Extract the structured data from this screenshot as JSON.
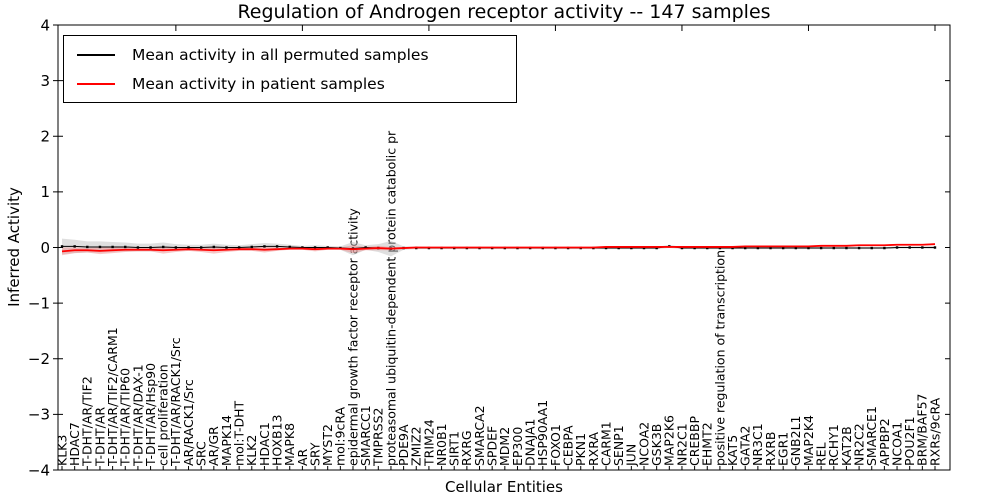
{
  "figure": {
    "title": "Regulation of Androgen receptor activity -- 147 samples",
    "xlabel": "Cellular Entities",
    "ylabel": "Inferred Activity"
  },
  "legend": {
    "entries": [
      {
        "label": "Mean activity in all permuted samples",
        "color": "#000000"
      },
      {
        "label": "Mean activity in patient samples",
        "color": "#ff0000"
      }
    ]
  },
  "chart_data": {
    "type": "line",
    "title": "Regulation of Androgen receptor activity -- 147 samples",
    "xlabel": "Cellular Entities",
    "ylabel": "Inferred Activity",
    "ylim": [
      -4,
      4
    ],
    "yticks": [
      4,
      3,
      2,
      1,
      0,
      -1,
      -2,
      -3,
      -4
    ],
    "grid": false,
    "legend_position": "upper left",
    "categories": [
      "KLK3",
      "HDAC7",
      "T-DHT/AR/TIF2",
      "T-DHT/AR",
      "T-DHT/AR/TIF2/CARM1",
      "T-DHT/AR/TIP60",
      "T-DHT/AR/DAX-1",
      "T-DHT/AR/Hsp90",
      "cell proliferation",
      "T-DHT/AR/RACK1/Src",
      "AR/RACK1/Src",
      "SRC",
      "AR/GR",
      "MAPK14",
      "mol:T-DHT",
      "KLK2",
      "HDAC1",
      "HOXB13",
      "MAPK8",
      "AR",
      "SRY",
      "MYST2",
      "mol:9cRA",
      "epidermal growth factor receptor activity",
      "SMARCC1",
      "TMPRSS2",
      "proteasomal ubiquitin-dependent protein catabolic pr",
      "PDE9A",
      "ZMIZ2",
      "TRIM24",
      "NR0B1",
      "SIRT1",
      "RXRG",
      "SMARCA2",
      "SPDEF",
      "MDM2",
      "EP300",
      "DNAJA1",
      "HSP90AA1",
      "FOXO1",
      "CEBPA",
      "PKN1",
      "RXRA",
      "CARM1",
      "SENP1",
      "JUN",
      "NCOA2",
      "GSK3B",
      "MAP2K6",
      "NR2C1",
      "CREBBP",
      "EHMT2",
      "positive regulation of transcription",
      "KAT5",
      "GATA2",
      "NR3C1",
      "RXRB",
      "EGR1",
      "GNB2L1",
      "MAP2K4",
      "REL",
      "RCHY1",
      "KAT2B",
      "NR2C2",
      "SMARCE1",
      "APPBP2",
      "NCOA1",
      "POU2F1",
      "BRM/BAF57",
      "RXRs/9cRA"
    ],
    "series": [
      {
        "name": "Mean activity in all permuted samples",
        "color": "#000000",
        "marker": "square",
        "band_color": "#c0c0c0",
        "values": [
          0.02,
          0.02,
          0.01,
          0.01,
          0.01,
          0.01,
          0.0,
          0.0,
          0.01,
          0.0,
          0.0,
          0.0,
          0.01,
          0.0,
          0.0,
          0.01,
          0.02,
          0.02,
          0.01,
          0.0,
          0.0,
          0.0,
          -0.01,
          -0.02,
          0.0,
          -0.01,
          -0.02,
          -0.01,
          -0.01,
          -0.01,
          -0.01,
          -0.01,
          -0.01,
          -0.01,
          -0.01,
          -0.01,
          -0.01,
          -0.01,
          -0.01,
          -0.01,
          -0.01,
          -0.01,
          -0.01,
          -0.01,
          -0.01,
          -0.01,
          -0.01,
          -0.01,
          0.02,
          -0.01,
          -0.01,
          -0.01,
          -0.01,
          -0.01,
          -0.01,
          -0.01,
          -0.01,
          -0.01,
          -0.01,
          -0.01,
          -0.01,
          -0.01,
          -0.01,
          -0.01,
          -0.01,
          -0.01,
          0.0,
          0.0,
          0.0,
          0.0
        ],
        "band_halfwidth": [
          0.14,
          0.12,
          0.1,
          0.1,
          0.09,
          0.08,
          0.07,
          0.07,
          0.08,
          0.06,
          0.05,
          0.05,
          0.06,
          0.05,
          0.04,
          0.05,
          0.06,
          0.05,
          0.04,
          0.03,
          0.04,
          0.03,
          0.03,
          0.12,
          0.04,
          0.07,
          0.14,
          0.03,
          0.02,
          0.02,
          0.02,
          0.02,
          0.02,
          0.02,
          0.02,
          0.02,
          0.02,
          0.02,
          0.02,
          0.02,
          0.02,
          0.02,
          0.02,
          0.02,
          0.02,
          0.02,
          0.02,
          0.02,
          0.03,
          0.02,
          0.02,
          0.02,
          0.02,
          0.02,
          0.02,
          0.02,
          0.02,
          0.02,
          0.02,
          0.02,
          0.02,
          0.02,
          0.02,
          0.02,
          0.02,
          0.02,
          0.02,
          0.02,
          0.02,
          0.03
        ]
      },
      {
        "name": "Mean activity in patient samples",
        "color": "#ff0000",
        "marker": "none",
        "band_color": "#f09090",
        "values": [
          -0.07,
          -0.05,
          -0.05,
          -0.06,
          -0.05,
          -0.04,
          -0.04,
          -0.04,
          -0.05,
          -0.04,
          -0.03,
          -0.04,
          -0.05,
          -0.04,
          -0.03,
          -0.03,
          -0.04,
          -0.03,
          -0.02,
          -0.02,
          -0.03,
          -0.02,
          -0.02,
          -0.03,
          -0.02,
          -0.01,
          -0.02,
          -0.01,
          0.0,
          0.0,
          0.0,
          0.0,
          0.0,
          0.0,
          0.0,
          0.0,
          0.0,
          0.0,
          0.0,
          0.0,
          0.0,
          0.0,
          0.0,
          0.01,
          0.01,
          0.01,
          0.01,
          0.01,
          0.01,
          0.01,
          0.01,
          0.01,
          0.01,
          0.01,
          0.02,
          0.02,
          0.02,
          0.02,
          0.02,
          0.02,
          0.03,
          0.03,
          0.03,
          0.04,
          0.04,
          0.04,
          0.05,
          0.05,
          0.05,
          0.06
        ],
        "band_halfwidth": [
          0.07,
          0.05,
          0.04,
          0.06,
          0.05,
          0.04,
          0.03,
          0.03,
          0.06,
          0.04,
          0.03,
          0.04,
          0.06,
          0.04,
          0.03,
          0.03,
          0.05,
          0.03,
          0.02,
          0.02,
          0.04,
          0.02,
          0.02,
          0.07,
          0.03,
          0.04,
          0.03,
          0.02,
          0.02,
          0.01,
          0.01,
          0.01,
          0.01,
          0.01,
          0.01,
          0.01,
          0.01,
          0.01,
          0.01,
          0.01,
          0.01,
          0.01,
          0.01,
          0.01,
          0.01,
          0.01,
          0.01,
          0.01,
          0.01,
          0.01,
          0.01,
          0.01,
          0.01,
          0.01,
          0.01,
          0.01,
          0.01,
          0.01,
          0.01,
          0.01,
          0.01,
          0.01,
          0.01,
          0.01,
          0.01,
          0.01,
          0.01,
          0.01,
          0.01,
          0.02
        ]
      }
    ]
  }
}
